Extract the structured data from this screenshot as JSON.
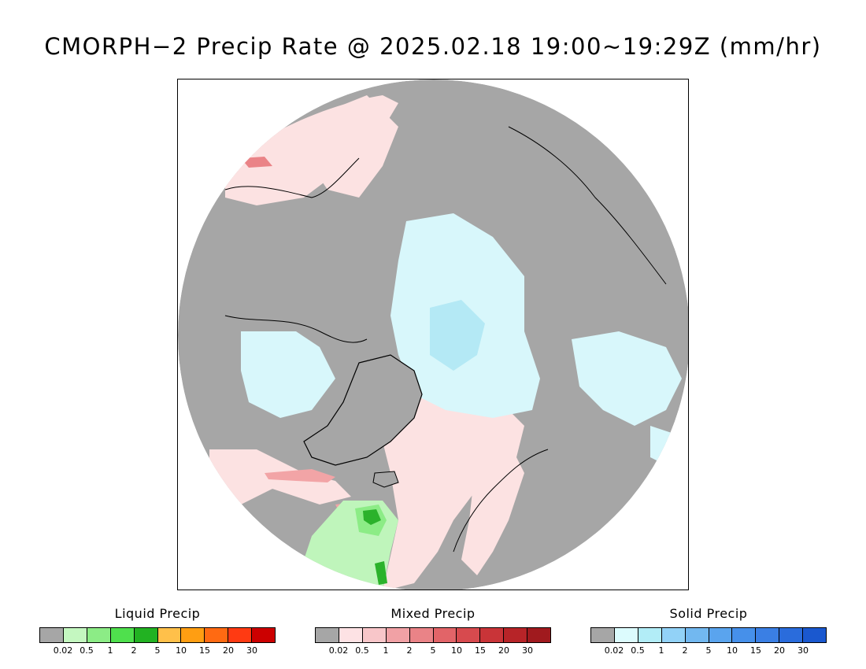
{
  "title": "CMORPH−2 Precip Rate @ 2025.02.18 19:00~19:29Z (mm/hr)",
  "colors": {
    "background_gray": "#a6a6a6",
    "mixed_light": "#fce2e2",
    "solid_light": "#d8f7fb",
    "solid_mid": "#b4e9f5",
    "liquid_light": "#bff5bb",
    "liquid_mid": "#8cec86",
    "liquid_dark": "#2bb22b",
    "mixed_mid": "#f2a4a6"
  },
  "legends": [
    {
      "title": "Liquid Precip",
      "colors": [
        "#a6a6a6",
        "#c4f7c0",
        "#8cec86",
        "#4fe04d",
        "#22b222",
        "#ffc04a",
        "#ff9e12",
        "#ff6a12",
        "#ff3a12",
        "#cc0000"
      ],
      "ticks": [
        "0.02",
        "0.5",
        "1",
        "2",
        "5",
        "10",
        "15",
        "20",
        "30"
      ]
    },
    {
      "title": "Mixed Precip",
      "colors": [
        "#a6a6a6",
        "#fde2e4",
        "#f8c6c9",
        "#f1a1a5",
        "#ea8387",
        "#e26468",
        "#d74a4e",
        "#c93438",
        "#b72428",
        "#a01a1e"
      ],
      "ticks": [
        "0.02",
        "0.5",
        "1",
        "2",
        "5",
        "10",
        "15",
        "20",
        "30"
      ]
    },
    {
      "title": "Solid Precip",
      "colors": [
        "#a6a6a6",
        "#dcfbfd",
        "#b2edf7",
        "#92d2f7",
        "#72b8f0",
        "#5aa4ee",
        "#4690ea",
        "#3a7fe4",
        "#2a6cdc",
        "#1a58cf"
      ],
      "ticks": [
        "0.02",
        "0.5",
        "1",
        "2",
        "5",
        "10",
        "15",
        "20",
        "30"
      ]
    }
  ]
}
